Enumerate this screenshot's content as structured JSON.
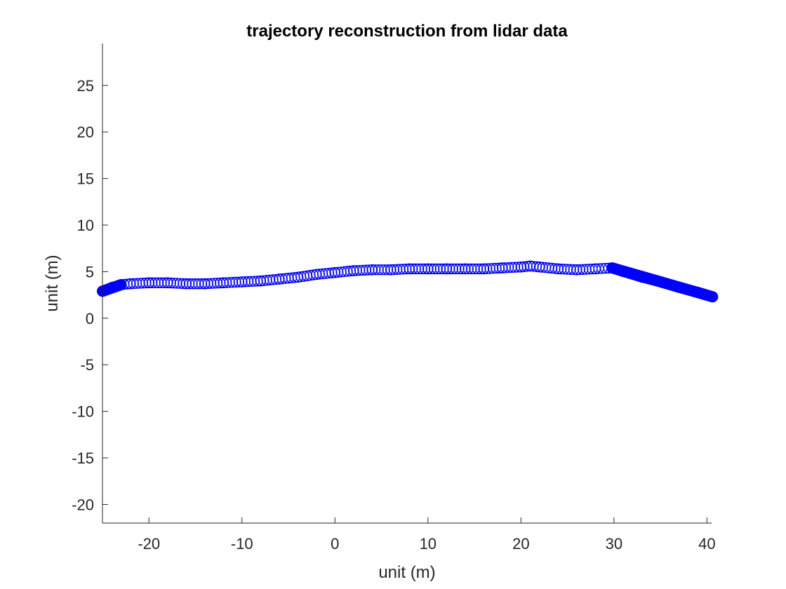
{
  "chart_data": {
    "type": "scatter",
    "title": "trajectory reconstruction from lidar data",
    "xlabel": "unit (m)",
    "ylabel": "unit (m)",
    "xlim": [
      -25,
      40.5
    ],
    "ylim": [
      -22,
      29.5
    ],
    "xticks": [
      -20,
      -10,
      0,
      10,
      20,
      30,
      40
    ],
    "yticks": [
      -20,
      -15,
      -10,
      -5,
      0,
      5,
      10,
      15,
      20,
      25
    ],
    "xtick_labels": [
      "-20",
      "-10",
      "0",
      "10",
      "20",
      "30",
      "40"
    ],
    "ytick_labels": [
      "-20",
      "-15",
      "-10",
      "-5",
      "0",
      "5",
      "10",
      "15",
      "20",
      "25"
    ],
    "marker": "circle",
    "color": "#0000ff",
    "grid": false,
    "box": false,
    "series": [
      {
        "x": [
          -25.0,
          -24.0,
          -23.0,
          -22.0,
          -20.0,
          -18.0,
          -16.0,
          -14.0,
          -12.0,
          -10.0,
          -8.0,
          -6.0,
          -4.0,
          -2.0,
          0.0,
          2.0,
          4.0,
          6.0,
          8.0,
          10.0,
          12.0,
          14.0,
          16.0,
          18.0,
          20.0,
          21.0,
          22.0,
          24.0,
          26.0,
          28.0,
          29.8,
          31.0,
          33.0,
          35.0,
          37.0,
          39.0,
          40.6
        ],
        "y": [
          2.9,
          3.3,
          3.6,
          3.7,
          3.8,
          3.8,
          3.7,
          3.7,
          3.8,
          3.9,
          4.0,
          4.2,
          4.4,
          4.7,
          4.9,
          5.1,
          5.2,
          5.2,
          5.3,
          5.3,
          5.3,
          5.3,
          5.3,
          5.4,
          5.5,
          5.6,
          5.5,
          5.3,
          5.2,
          5.3,
          5.4,
          5.0,
          4.4,
          3.9,
          3.3,
          2.8,
          2.3
        ]
      }
    ]
  }
}
